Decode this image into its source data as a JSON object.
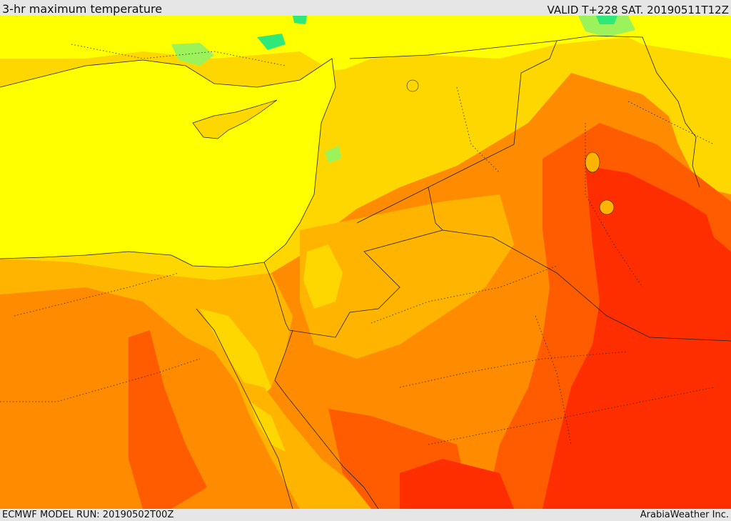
{
  "header": {
    "title": "3-hr maximum temperature",
    "valid": "VALID T+228 SAT. 20190511T12Z"
  },
  "footer": {
    "model_run": "ECMWF MODEL RUN: 20190502T00Z",
    "credit": "ArabiaWeather Inc."
  },
  "map": {
    "field": "3-hr maximum temperature",
    "region": "Eastern Mediterranean / Levant / Arabian Peninsula",
    "palette": {
      "green": "#2ee87a",
      "light_green": "#9cf25a",
      "yellow": "#ffff00",
      "yellow_orange": "#ffd700",
      "light_orange": "#ffb400",
      "orange": "#ff8c00",
      "dark_orange": "#ff5c00",
      "red": "#ff2e00",
      "sea": "#ffff00"
    }
  }
}
